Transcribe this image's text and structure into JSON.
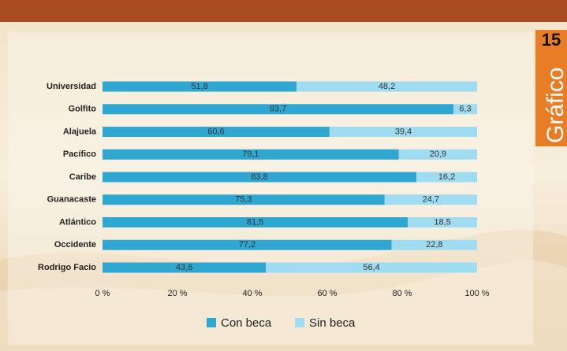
{
  "chart_data": {
    "type": "stacked-bar-horizontal",
    "badge_number": "15",
    "badge_label": "Gráfico",
    "categories": [
      "Universidad",
      "Golfito",
      "Alajuela",
      "Pacífico",
      "Caribe",
      "Guanacaste",
      "Atlántico",
      "Occidente",
      "Rodrigo Facio"
    ],
    "series": [
      {
        "name": "Con beca",
        "color": "#2fa7d0",
        "values": [
          51.8,
          93.7,
          60.6,
          79.1,
          83.8,
          75.3,
          81.5,
          77.2,
          43.6
        ],
        "value_labels": [
          "51,8",
          "93,7",
          "60,6",
          "79,1",
          "83,8",
          "75,3",
          "81,5",
          "77,2",
          "43,6"
        ]
      },
      {
        "name": "Sin beca",
        "color": "#9fdcf1",
        "values": [
          48.2,
          6.3,
          39.4,
          20.9,
          16.2,
          24.7,
          18.5,
          22.8,
          56.4
        ],
        "value_labels": [
          "48,2",
          "6,3",
          "39,4",
          "20,9",
          "16,2",
          "24,7",
          "18,5",
          "22,8",
          "56,4"
        ]
      }
    ],
    "xlim": [
      0,
      100
    ],
    "xticks": [
      {
        "value": 0,
        "label": "0 %"
      },
      {
        "value": 20,
        "label": "20 %"
      },
      {
        "value": 40,
        "label": "40 %"
      },
      {
        "value": 60,
        "label": "60 %"
      },
      {
        "value": 80,
        "label": "80 %"
      },
      {
        "value": 100,
        "label": "100 %"
      }
    ],
    "grid": false,
    "legend": "bottom"
  }
}
